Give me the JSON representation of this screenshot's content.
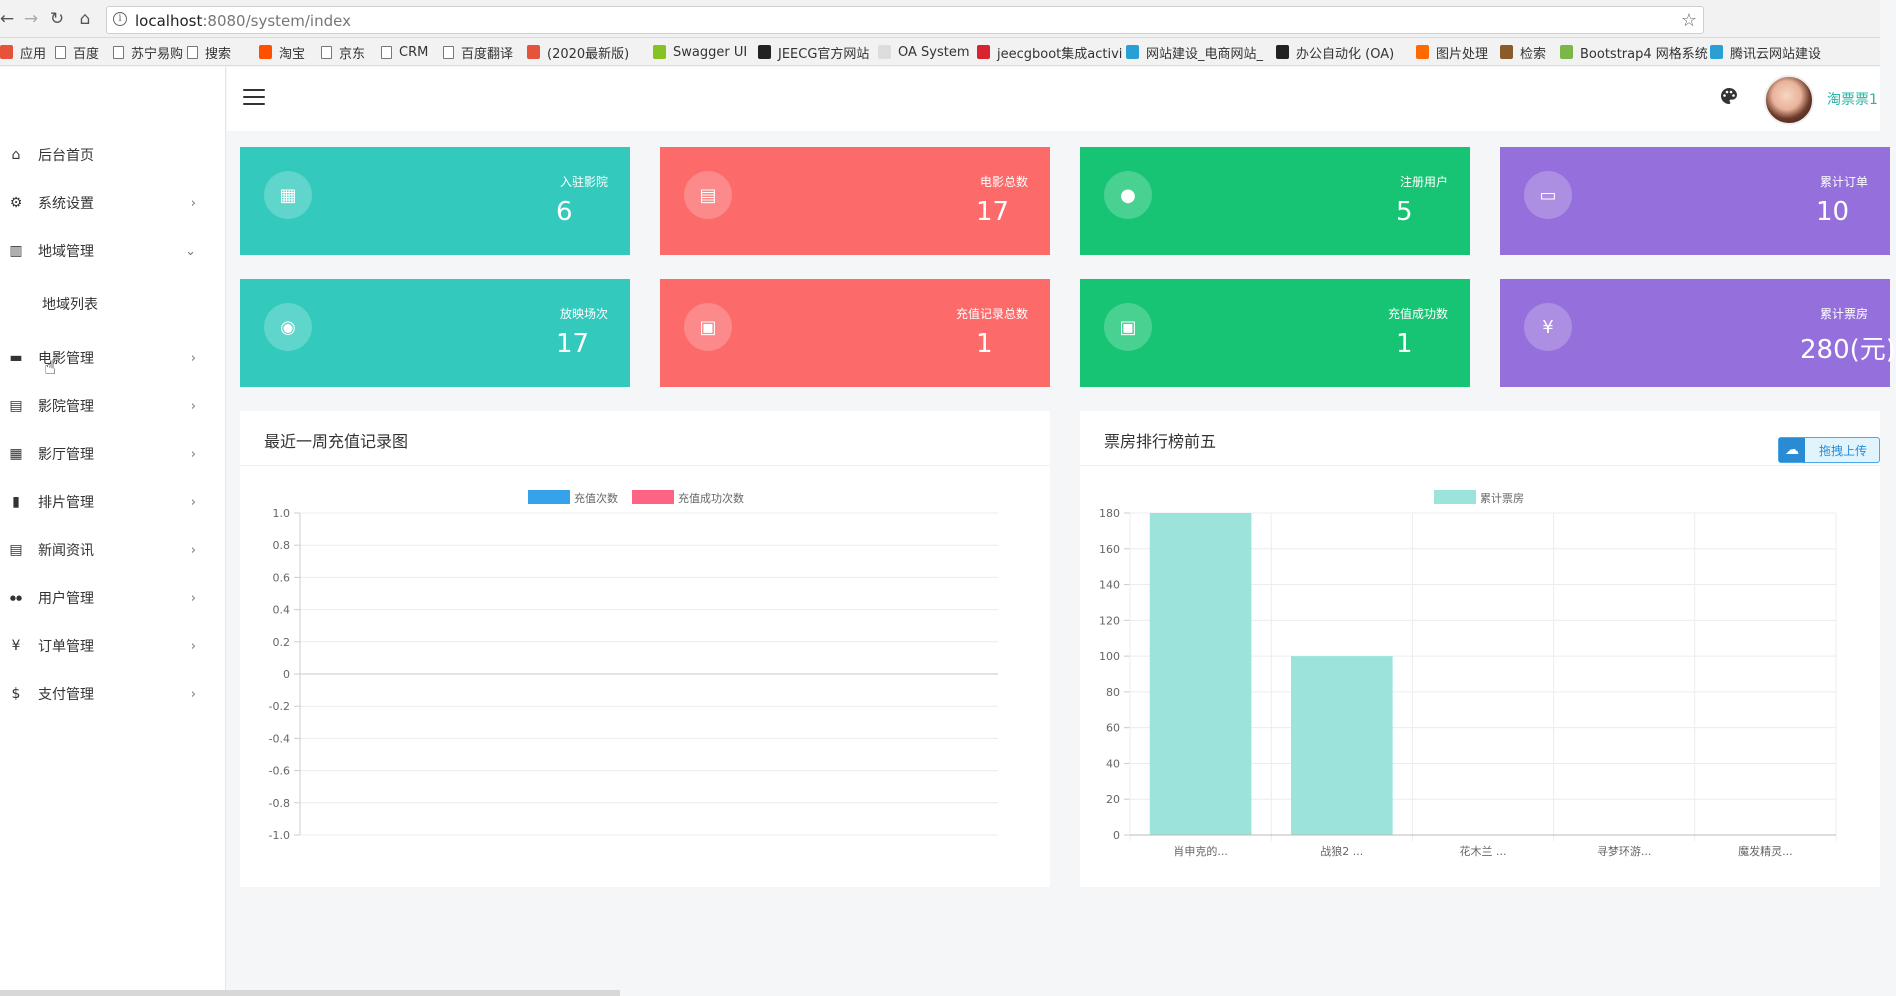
{
  "browser": {
    "url_host": "localhost",
    "url_path": ":8080/system/index",
    "bookmarks": [
      {
        "label": "应用",
        "color": "#e5533a"
      },
      {
        "label": "百度",
        "color": ""
      },
      {
        "label": "苏宁易购",
        "color": ""
      },
      {
        "label": "搜索",
        "color": ""
      },
      {
        "label": "淘宝",
        "color": "#ff5000"
      },
      {
        "label": "京东",
        "color": ""
      },
      {
        "label": "CRM",
        "color": ""
      },
      {
        "label": "百度翻译",
        "color": ""
      },
      {
        "label": "(2020最新版)",
        "color": "#e5533a"
      },
      {
        "label": "Swagger UI",
        "color": "#85c224"
      },
      {
        "label": "JEECG官方网站",
        "color": "#222222"
      },
      {
        "label": "OA System",
        "color": "#dddddd"
      },
      {
        "label": "jeecgboot集成activi",
        "color": "#d9232f"
      },
      {
        "label": "网站建设_电商网站_",
        "color": "#2a9fd6"
      },
      {
        "label": "办公自动化 (OA)",
        "color": "#222222"
      },
      {
        "label": "图片处理",
        "color": "#ff6a00"
      },
      {
        "label": "检索",
        "color": "#8a5a2b"
      },
      {
        "label": "Bootstrap4 网格系统",
        "color": "#7ab648"
      },
      {
        "label": "腾讯云网站建设",
        "color": "#2a9fd6"
      }
    ]
  },
  "sidebar": {
    "items": [
      {
        "label": "后台首页",
        "icon": "home-icon",
        "arrow": ""
      },
      {
        "label": "系统设置",
        "icon": "gear-icon",
        "arrow": "›"
      },
      {
        "label": "地域管理",
        "icon": "map-icon",
        "arrow": "⌄"
      },
      {
        "label": "地域列表",
        "icon": "",
        "arrow": ""
      },
      {
        "label": "电影管理",
        "icon": "movie-icon",
        "arrow": "›"
      },
      {
        "label": "影院管理",
        "icon": "store-icon",
        "arrow": "›"
      },
      {
        "label": "影厅管理",
        "icon": "building-icon",
        "arrow": "›"
      },
      {
        "label": "排片管理",
        "icon": "film-icon",
        "arrow": "›"
      },
      {
        "label": "新闻资讯",
        "icon": "news-icon",
        "arrow": "›"
      },
      {
        "label": "用户管理",
        "icon": "people-icon",
        "arrow": "›"
      },
      {
        "label": "订单管理",
        "icon": "yen-icon",
        "arrow": "›"
      },
      {
        "label": "支付管理",
        "icon": "dollar-icon",
        "arrow": "›"
      }
    ]
  },
  "header": {
    "username": "淘票票1"
  },
  "stats": [
    {
      "label": "入驻影院",
      "value": "6",
      "color": "#33c9bd",
      "icon": "clapperboard-icon"
    },
    {
      "label": "电影总数",
      "value": "17",
      "color": "#fc6a6a",
      "icon": "movie-building-icon"
    },
    {
      "label": "注册用户",
      "value": "5",
      "color": "#16c474",
      "icon": "people-icon"
    },
    {
      "label": "累计订单",
      "value": "10",
      "color": "#9570dc",
      "icon": "monitor-icon"
    },
    {
      "label": "放映场次",
      "value": "17",
      "color": "#33c9bd",
      "icon": "lightbulb-icon"
    },
    {
      "label": "充值记录总数",
      "value": "1",
      "color": "#fc6a6a",
      "icon": "money-icon"
    },
    {
      "label": "充值成功数",
      "value": "1",
      "color": "#16c474",
      "icon": "money-icon"
    },
    {
      "label": "累计票房",
      "value": "280(元)",
      "color": "#9570dc",
      "icon": "yen-icon"
    }
  ],
  "panels": {
    "left_title": "最近一周充值记录图",
    "right_title": "票房排行榜前五",
    "upload_badge": "拖拽上传"
  },
  "chart_data": [
    {
      "type": "line",
      "legend": [
        "充值次数",
        "充值成功次数"
      ],
      "legend_colors": [
        "#36a2eb",
        "#ff6384"
      ],
      "series": [
        {
          "name": "充值次数",
          "values": []
        },
        {
          "name": "充值成功次数",
          "values": []
        }
      ],
      "y_ticks": [
        "1.0",
        "0.8",
        "0.6",
        "0.4",
        "0.2",
        "0",
        "-0.2",
        "-0.4",
        "-0.6",
        "-0.8",
        "-1.0"
      ],
      "ylim": [
        -1.0,
        1.0
      ],
      "grid": true,
      "legend_position": "top"
    },
    {
      "type": "bar",
      "categories": [
        "肖申克的...",
        "战狼2 ...",
        "花木兰 ...",
        "寻梦环游...",
        "魔发精灵..."
      ],
      "series": [
        {
          "name": "累计票房",
          "values": [
            180,
            100,
            0,
            0,
            0
          ]
        }
      ],
      "color": "#9ce3dc",
      "y_ticks": [
        "180",
        "160",
        "140",
        "120",
        "100",
        "80",
        "60",
        "40",
        "20",
        "0"
      ],
      "ylim": [
        0,
        180
      ],
      "grid": true,
      "legend_position": "top"
    }
  ]
}
